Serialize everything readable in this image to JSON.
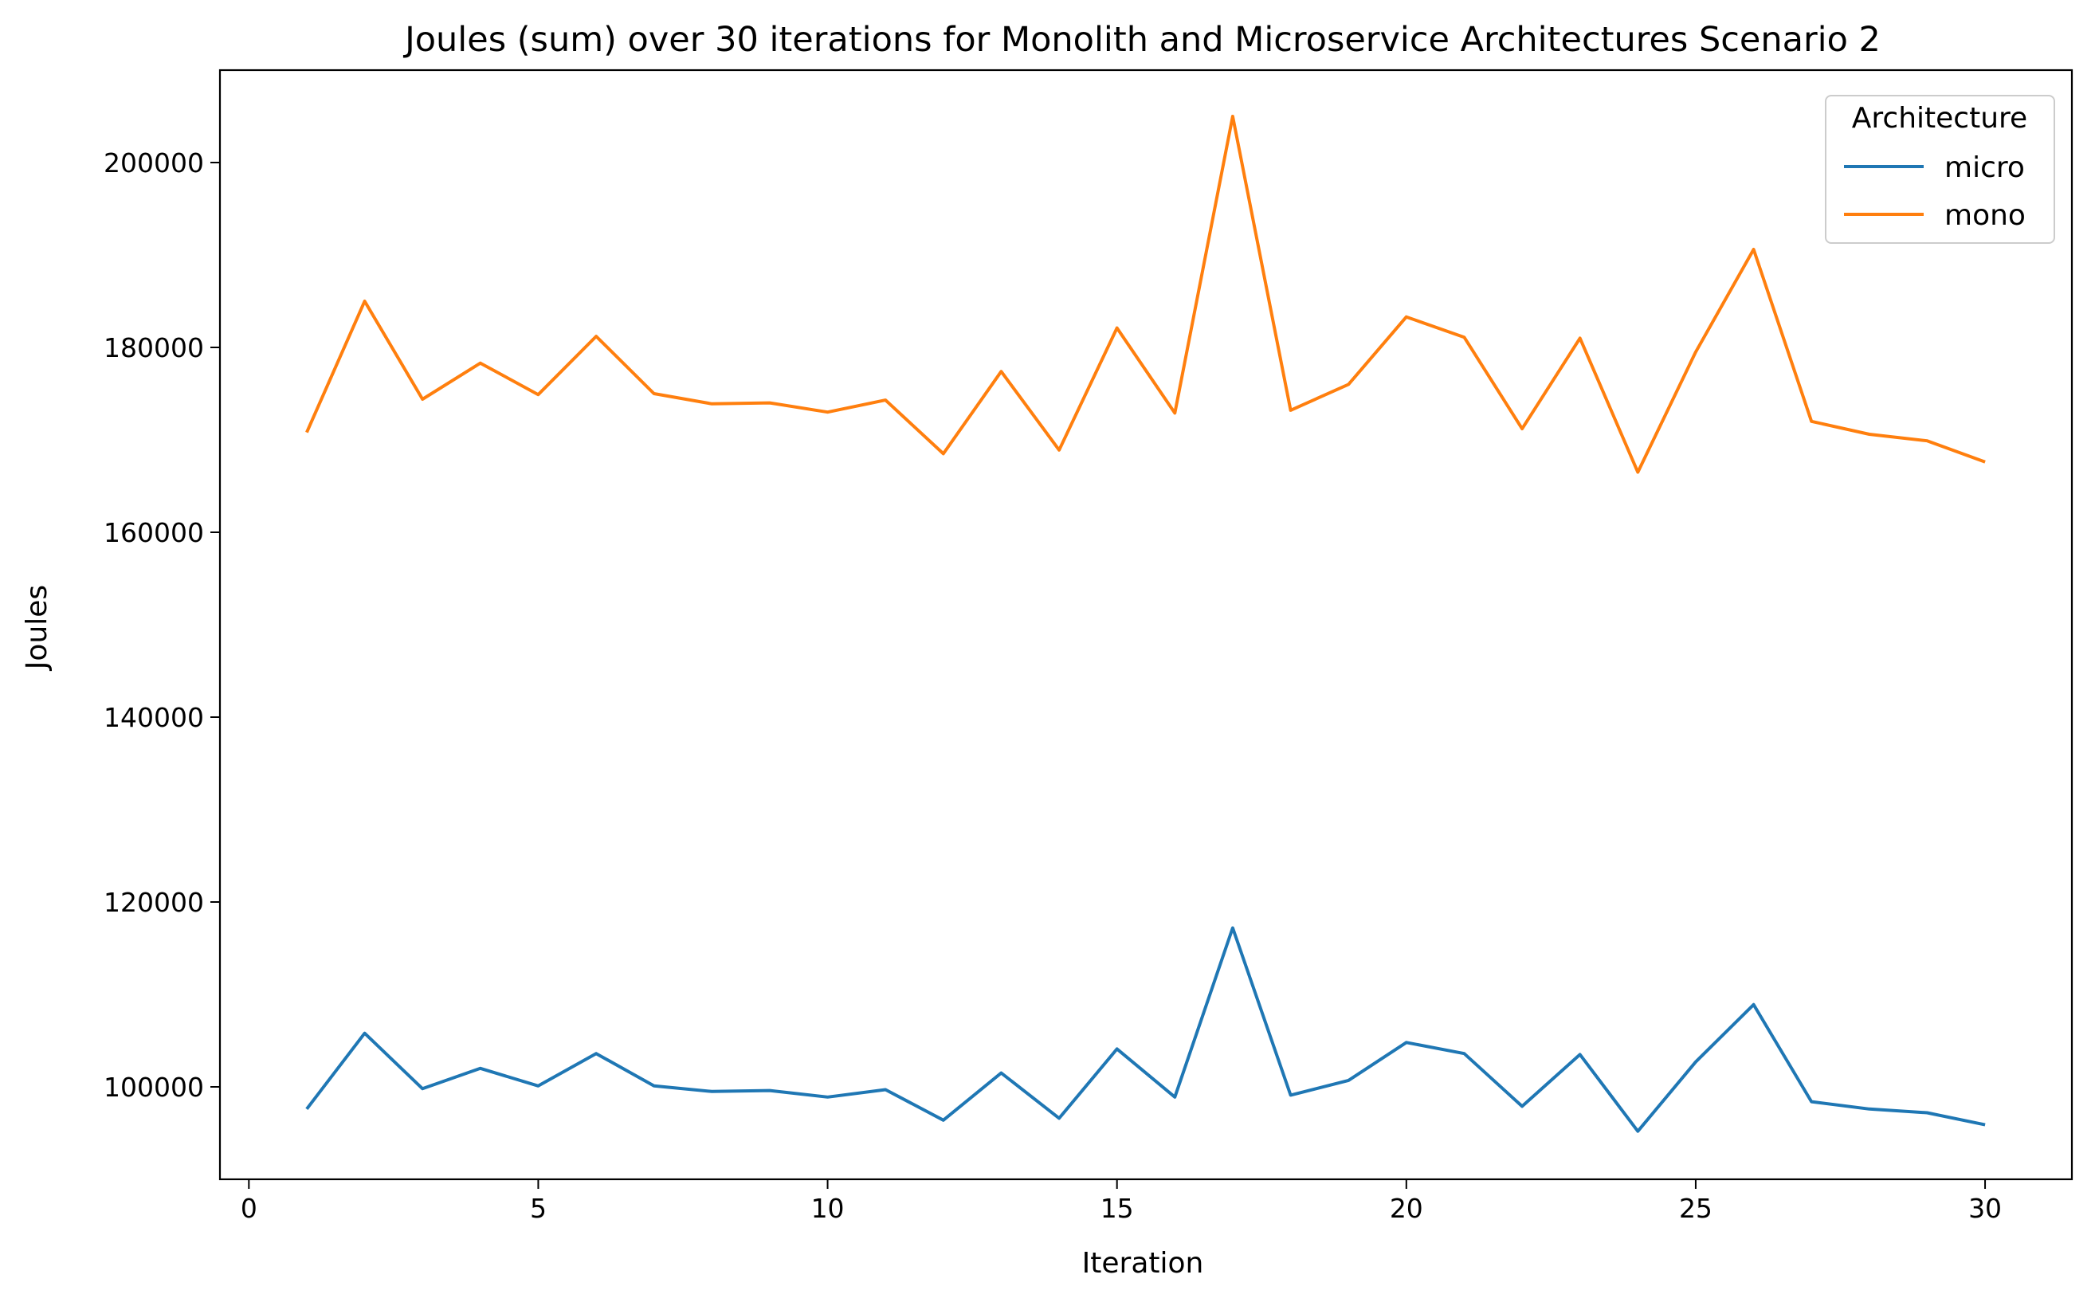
{
  "chart_data": {
    "type": "line",
    "title": "Joules (sum) over 30 iterations for Monolith and Microservice Architectures Scenario 2",
    "xlabel": "Iteration",
    "ylabel": "Joules",
    "xlim": [
      -0.5,
      31.5
    ],
    "ylim": [
      90000,
      210000
    ],
    "xticks": [
      0,
      5,
      10,
      15,
      20,
      25,
      30
    ],
    "yticks": [
      100000,
      120000,
      140000,
      160000,
      180000,
      200000
    ],
    "legend": {
      "title": "Architecture",
      "position": "top-right"
    },
    "grid": false,
    "x": [
      1,
      2,
      3,
      4,
      5,
      6,
      7,
      8,
      9,
      10,
      11,
      12,
      13,
      14,
      15,
      16,
      17,
      18,
      19,
      20,
      21,
      22,
      23,
      24,
      25,
      26,
      27,
      28,
      29,
      30
    ],
    "series": [
      {
        "name": "micro",
        "color": "#1f77b4",
        "values": [
          97600,
          105800,
          99800,
          102000,
          100100,
          103600,
          100100,
          99500,
          99600,
          98900,
          99700,
          96400,
          101500,
          96600,
          104100,
          98900,
          117200,
          99100,
          100700,
          104800,
          103600,
          97900,
          103500,
          95200,
          102700,
          108900,
          98400,
          97600,
          97200,
          95900
        ]
      },
      {
        "name": "mono",
        "color": "#ff7f0e",
        "values": [
          170800,
          185000,
          174400,
          178300,
          174900,
          181200,
          175000,
          173900,
          174000,
          173000,
          174300,
          168500,
          177400,
          168900,
          182100,
          172900,
          205000,
          173200,
          176000,
          183300,
          181100,
          171200,
          181000,
          166500,
          179500,
          190600,
          172000,
          170600,
          169900,
          167600
        ]
      }
    ]
  }
}
